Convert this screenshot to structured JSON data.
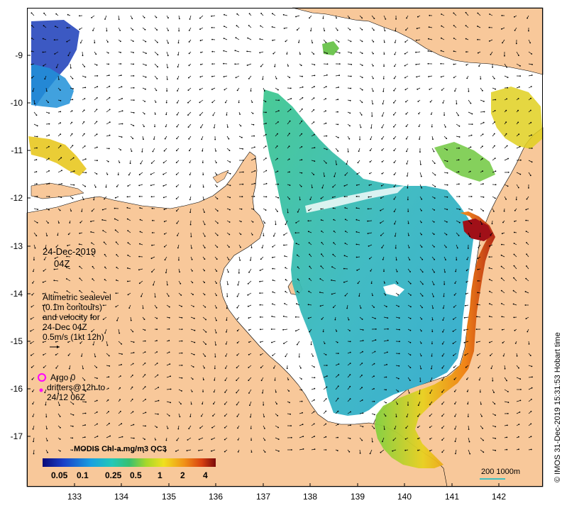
{
  "map": {
    "date": "24-Dec-2019",
    "time": "04Z",
    "altimetry": [
      "Altimetric sealevel",
      "(0.1m contours)",
      "and velocity for",
      "24-Dec 04Z",
      "0.5m/s (1kt 12h)"
    ],
    "argo": "Argo 0",
    "drifters": [
      "drifters@12h to",
      "24/12 06Z"
    ],
    "colorbar_title": "MODIS Chl-a mg/m3 OC3",
    "colorbar_ticks": [
      "0.05",
      "0.1",
      "0.25",
      "0.5",
      "1",
      "2",
      "4"
    ],
    "scale": "200  1000m",
    "credit": "© IMOS 31-Dec-2019 15:31:53 Hobart time",
    "lat_ticks": [
      "-9",
      "-10",
      "-11",
      "-12",
      "-13",
      "-14",
      "-15",
      "-16",
      "-17"
    ],
    "lon_ticks": [
      "133",
      "134",
      "135",
      "136",
      "137",
      "138",
      "139",
      "140",
      "141",
      "142"
    ],
    "colors": {
      "land": "#f8c89a",
      "argo": "#ff00ff",
      "scale": "#40c0c0"
    }
  }
}
